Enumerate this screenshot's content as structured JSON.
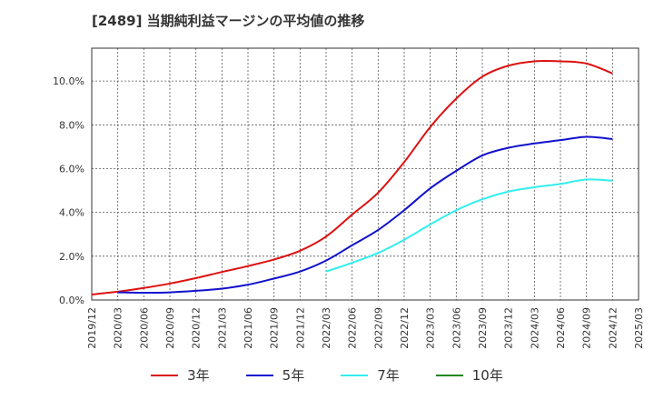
{
  "title": "[2489]  当期純利益マージンの平均値の推移",
  "chart_data": {
    "type": "line",
    "x": [
      "2019/12",
      "2020/03",
      "2020/06",
      "2020/09",
      "2020/12",
      "2021/03",
      "2021/06",
      "2021/09",
      "2021/12",
      "2022/03",
      "2022/06",
      "2022/09",
      "2022/12",
      "2023/03",
      "2023/06",
      "2023/09",
      "2023/12",
      "2024/03",
      "2024/06",
      "2024/09",
      "2024/12",
      "2025/03"
    ],
    "ylim": [
      0,
      11.5
    ],
    "yticks": [
      "0.0%",
      "2.0%",
      "4.0%",
      "6.0%",
      "8.0%",
      "10.0%"
    ],
    "ytick_values": [
      0,
      2,
      4,
      6,
      8,
      10
    ],
    "grid": true,
    "legend_position": "bottom",
    "series": [
      {
        "name": "3年",
        "color": "#dd1111",
        "values": [
          0.25,
          0.38,
          0.55,
          0.75,
          1.0,
          1.28,
          1.55,
          1.85,
          2.25,
          2.9,
          3.9,
          4.9,
          6.3,
          7.9,
          9.2,
          10.2,
          10.7,
          10.9,
          10.9,
          10.8,
          10.35,
          null
        ]
      },
      {
        "name": "5年",
        "color": "#1111cc",
        "values": [
          null,
          0.35,
          0.33,
          0.35,
          0.42,
          0.52,
          0.7,
          0.98,
          1.3,
          1.8,
          2.5,
          3.2,
          4.1,
          5.1,
          5.9,
          6.6,
          6.95,
          7.15,
          7.3,
          7.45,
          7.35,
          null
        ]
      },
      {
        "name": "7年",
        "color": "#33eeee",
        "values": [
          null,
          null,
          null,
          null,
          null,
          null,
          null,
          null,
          null,
          1.3,
          1.7,
          2.15,
          2.75,
          3.45,
          4.1,
          4.6,
          4.95,
          5.15,
          5.3,
          5.5,
          5.45,
          null
        ]
      },
      {
        "name": "10年",
        "color": "#228822",
        "values": [
          null,
          null,
          null,
          null,
          null,
          null,
          null,
          null,
          null,
          null,
          null,
          null,
          null,
          null,
          null,
          null,
          null,
          null,
          null,
          null,
          null,
          null
        ]
      }
    ]
  }
}
